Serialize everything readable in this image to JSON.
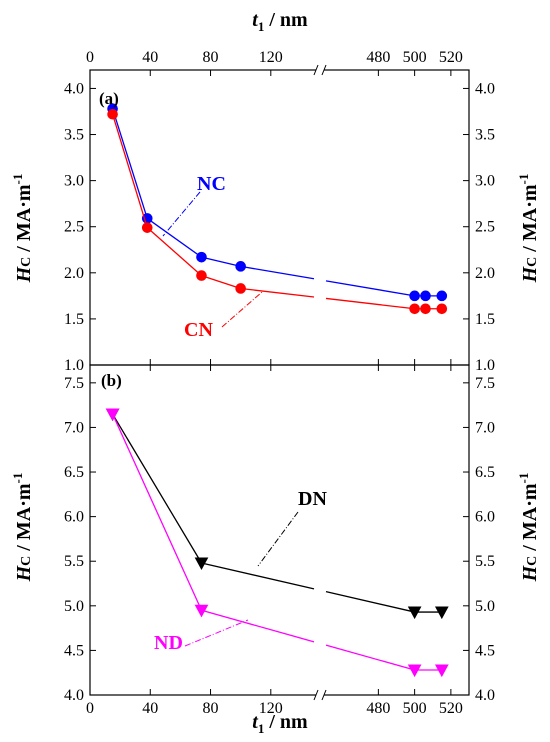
{
  "chart_data": {
    "type": "line",
    "x_axis_label": {
      "main": "t",
      "sub": "1",
      "unit": " / nm"
    },
    "x_axis_segments": [
      {
        "range": [
          0,
          150
        ],
        "ticks": [
          0,
          40,
          80,
          120
        ]
      },
      {
        "range": [
          450,
          530
        ],
        "ticks": [
          480,
          500,
          520
        ]
      }
    ],
    "axis_break": true,
    "panels": [
      {
        "id": "a",
        "panel_label": "(a)",
        "y_axis_label": {
          "main": "H",
          "sub": "C",
          "unit": " / MA·m",
          "sup": "-1"
        },
        "ylim": [
          1.0,
          4.2
        ],
        "yticks": [
          "1.0",
          "1.5",
          "2.0",
          "2.5",
          "3.0",
          "3.5",
          "4.0"
        ],
        "series": [
          {
            "name": "NC",
            "color": "#0000ff",
            "marker": "circle",
            "x": [
              15,
              38,
              74,
              100,
              500,
              506,
              515
            ],
            "y": [
              3.78,
              2.59,
              2.17,
              2.07,
              1.75,
              1.75,
              1.75
            ]
          },
          {
            "name": "CN",
            "color": "#ff0000",
            "marker": "circle",
            "x": [
              15,
              38,
              74,
              100,
              500,
              506,
              515
            ],
            "y": [
              3.72,
              2.49,
              1.97,
              1.83,
              1.61,
              1.61,
              1.61
            ]
          }
        ]
      },
      {
        "id": "b",
        "panel_label": "(b)",
        "y_axis_label": {
          "main": "H",
          "sub": "C",
          "unit": " / MA·m",
          "sup": "-1"
        },
        "ylim": [
          4.0,
          7.7
        ],
        "yticks": [
          "4.0",
          "4.5",
          "5.0",
          "5.5",
          "6.0",
          "6.5",
          "7.0",
          "7.5"
        ],
        "series": [
          {
            "name": "DN",
            "color": "#000000",
            "marker": "triangle-down",
            "x": [
              15,
              74,
              500,
              515
            ],
            "y": [
              7.15,
              5.48,
              4.93,
              4.93
            ]
          },
          {
            "name": "ND",
            "color": "#ff00ff",
            "marker": "triangle-down",
            "x": [
              15,
              74,
              500,
              515
            ],
            "y": [
              7.15,
              4.95,
              4.28,
              4.28
            ]
          }
        ]
      }
    ]
  }
}
